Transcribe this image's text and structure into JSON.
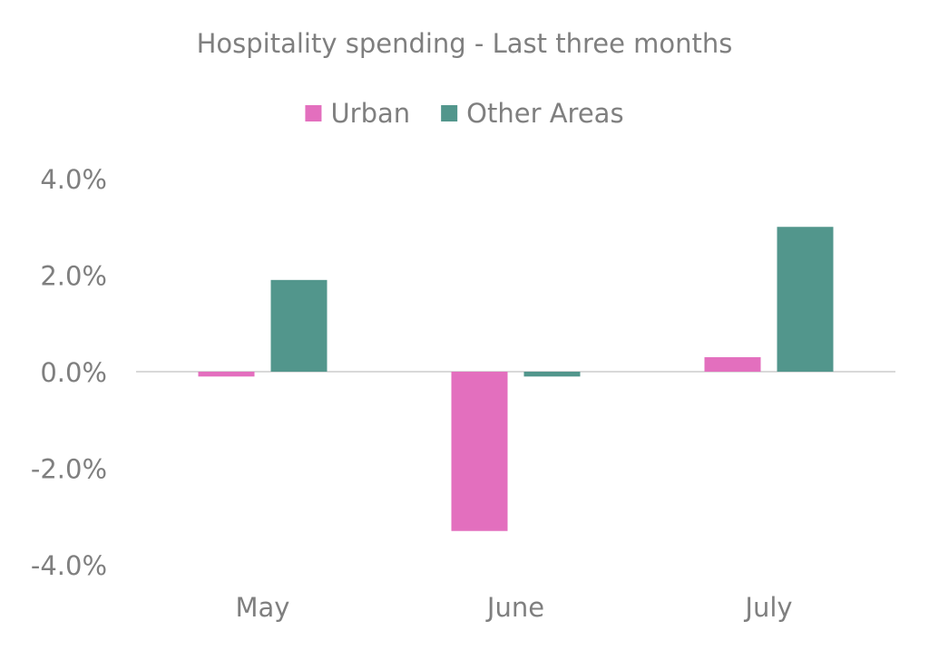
{
  "chart_data": {
    "type": "bar",
    "title": "Hospitality spending - Last three months",
    "categories": [
      "May",
      "June",
      "July"
    ],
    "series": [
      {
        "name": "Urban",
        "color": "#e36fbe",
        "values": [
          -0.1,
          -3.3,
          0.3
        ]
      },
      {
        "name": "Other Areas",
        "color": "#52968c",
        "values": [
          1.9,
          -0.1,
          3.0
        ]
      }
    ],
    "ylim": [
      -4.0,
      4.0
    ],
    "yticks": [
      4.0,
      2.0,
      0.0,
      -2.0,
      -4.0
    ],
    "ytick_labels": [
      "4.0%",
      "2.0%",
      "0.0%",
      "-2.0%",
      "-4.0%"
    ],
    "ylabel": "",
    "xlabel": "",
    "legend_position": "top",
    "grid": false,
    "zero_line": true
  }
}
